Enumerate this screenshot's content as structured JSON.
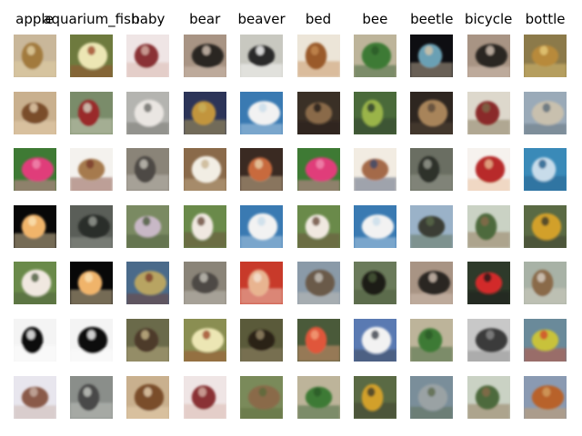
{
  "columns": [
    "apple",
    "aquarium_fish",
    "baby",
    "bear",
    "beaver",
    "bed",
    "bee",
    "beetle",
    "bicycle",
    "bottle"
  ],
  "rows": [
    [
      {
        "subject": "bottle",
        "bg": "#c9b79a",
        "fg": "#a27a3e",
        "accent": "#e4d2a4"
      },
      {
        "subject": "lily flower",
        "bg": "#6e7a3e",
        "fg": "#ece6b4",
        "accent": "#a04a2a"
      },
      {
        "subject": "couch",
        "bg": "#efe5e5",
        "fg": "#8a3034",
        "accent": "#d6b2a6"
      },
      {
        "subject": "dark shape",
        "bg": "#a89484",
        "fg": "#2a2622",
        "accent": "#d7c6b8"
      },
      {
        "subject": "bird",
        "bg": "#c8c8c0",
        "fg": "#2c2c2a",
        "accent": "#ffffff"
      },
      {
        "subject": "chair",
        "bg": "#ece5d8",
        "fg": "#9a5a2a",
        "accent": "#c48a52"
      },
      {
        "subject": "bottles",
        "bg": "#bdb49a",
        "fg": "#3e7a34",
        "accent": "#2c5a2a"
      },
      {
        "subject": "dinosaur",
        "bg": "#0e0e12",
        "fg": "#6aa0b4",
        "accent": "#d6c6a8"
      },
      {
        "subject": "dark shape",
        "bg": "#a89484",
        "fg": "#2a2622",
        "accent": "#d7c6b8"
      },
      {
        "subject": "pear",
        "bg": "#8c7a4a",
        "fg": "#b88a3a",
        "accent": "#e6ca7a"
      }
    ],
    [
      {
        "subject": "woman",
        "bg": "#c9b08e",
        "fg": "#7a4e2a",
        "accent": "#e8d2b2"
      },
      {
        "subject": "streetcar",
        "bg": "#7a8c6a",
        "fg": "#9a2a2a",
        "accent": "#d6d6c6"
      },
      {
        "subject": "white dog",
        "bg": "#b4b4b0",
        "fg": "#eae6e2",
        "accent": "#6a6a66"
      },
      {
        "subject": "pear",
        "bg": "#2c3458",
        "fg": "#c2953e",
        "accent": "#c8b05a"
      },
      {
        "subject": "rocket",
        "bg": "#3a7ab2",
        "fg": "#f2f2f2",
        "accent": "#c8dcea"
      },
      {
        "subject": "leopard",
        "bg": "#3a3026",
        "fg": "#8a6a48",
        "accent": "#1e1a16"
      },
      {
        "subject": "fish",
        "bg": "#4a6a3a",
        "fg": "#9ab44a",
        "accent": "#2a3a2a"
      },
      {
        "subject": "dark plant",
        "bg": "#2e2620",
        "fg": "#a8845a",
        "accent": "#5a4a3a"
      },
      {
        "subject": "bicycle",
        "bg": "#ddd8cc",
        "fg": "#8a2a2a",
        "accent": "#7a6a4a"
      },
      {
        "subject": "beach",
        "bg": "#9aaab8",
        "fg": "#c8c0ae",
        "accent": "#5a6a78"
      }
    ],
    [
      {
        "subject": "rose",
        "bg": "#3e7a34",
        "fg": "#e03e7a",
        "accent": "#f08ab0"
      },
      {
        "subject": "lamp",
        "bg": "#f4f2ee",
        "fg": "#a67a4e",
        "accent": "#7a3a2a"
      },
      {
        "subject": "raccoon",
        "bg": "#8a8478",
        "fg": "#4e4a44",
        "accent": "#c8c4bc"
      },
      {
        "subject": "couch",
        "bg": "#8a6a4a",
        "fg": "#f2eee4",
        "accent": "#c8b490"
      },
      {
        "subject": "bowl",
        "bg": "#3a2a22",
        "fg": "#c86a3e",
        "accent": "#e8d0a8"
      },
      {
        "subject": "rose",
        "bg": "#3e7a34",
        "fg": "#e03e7a",
        "accent": "#f08ab0"
      },
      {
        "subject": "bowl",
        "bg": "#f2ece2",
        "fg": "#a46a4a",
        "accent": "#3a4a6a"
      },
      {
        "subject": "dark animal",
        "bg": "#6a6e62",
        "fg": "#2e302c",
        "accent": "#9a9e92"
      },
      {
        "subject": "rose",
        "bg": "#f6f2ee",
        "fg": "#b82a2a",
        "accent": "#e8b890"
      },
      {
        "subject": "shark",
        "bg": "#3a8ab8",
        "fg": "#c8dcea",
        "accent": "#1e5a88"
      }
    ],
    [
      {
        "subject": "rose",
        "bg": "#080808",
        "fg": "#f0b46a",
        "accent": "#fae2b4"
      },
      {
        "subject": "forest",
        "bg": "#5a5e58",
        "fg": "#2c2e2a",
        "accent": "#9a9e96"
      },
      {
        "subject": "girl",
        "bg": "#7a8a62",
        "fg": "#c8b8c6",
        "accent": "#4a5a3a"
      },
      {
        "subject": "cattle",
        "bg": "#6a8a4a",
        "fg": "#f0e8e0",
        "accent": "#6a4a3a"
      },
      {
        "subject": "rocket",
        "bg": "#3a7ab2",
        "fg": "#f2f2f2",
        "accent": "#c8dcea"
      },
      {
        "subject": "cattle",
        "bg": "#6a8a4a",
        "fg": "#f0e8e0",
        "accent": "#6a4a3a"
      },
      {
        "subject": "rocket",
        "bg": "#3a7ab2",
        "fg": "#f2f2f2",
        "accent": "#c8dcea"
      },
      {
        "subject": "tank",
        "bg": "#9ab2c8",
        "fg": "#3a3e34",
        "accent": "#5a6a4a"
      },
      {
        "subject": "palm tree",
        "bg": "#cad2c4",
        "fg": "#4e6a3e",
        "accent": "#8a6a4a"
      },
      {
        "subject": "bulldozer",
        "bg": "#5a6a44",
        "fg": "#d2a02a",
        "accent": "#3a3a2a"
      }
    ],
    [
      {
        "subject": "cattle",
        "bg": "#6a8a4a",
        "fg": "#f0e8e0",
        "accent": "#4a5a3a"
      },
      {
        "subject": "rose",
        "bg": "#080808",
        "fg": "#f0b46a",
        "accent": "#fae2b4"
      },
      {
        "subject": "plate",
        "bg": "#4a6a8a",
        "fg": "#b8a462",
        "accent": "#7a3a2a"
      },
      {
        "subject": "raccoon",
        "bg": "#8a8478",
        "fg": "#4e4a44",
        "accent": "#c8c4bc"
      },
      {
        "subject": "girl",
        "bg": "#c83a2a",
        "fg": "#e8b490",
        "accent": "#f2e2d2"
      },
      {
        "subject": "street",
        "bg": "#8a9aa8",
        "fg": "#6a5a4a",
        "accent": "#c8c4bc"
      },
      {
        "subject": "bear",
        "bg": "#6a7a5a",
        "fg": "#1e1a16",
        "accent": "#4a5a3a"
      },
      {
        "subject": "dark shape",
        "bg": "#a89484",
        "fg": "#2a2622",
        "accent": "#d7c6b8"
      },
      {
        "subject": "ladybug",
        "bg": "#2e3a2a",
        "fg": "#d22a2a",
        "accent": "#1a1a1a"
      },
      {
        "subject": "pot",
        "bg": "#a8b2a6",
        "fg": "#8a6a4a",
        "accent": "#d8d0c4"
      }
    ],
    [
      {
        "subject": "skunk",
        "bg": "#f4f4f4",
        "fg": "#0e0e0e",
        "accent": "#ffffff"
      },
      {
        "subject": "skunk",
        "bg": "#f4f4f4",
        "fg": "#0e0e0e",
        "accent": "#ffffff"
      },
      {
        "subject": "monkey",
        "bg": "#6a6a4a",
        "fg": "#4e3a2a",
        "accent": "#c8b88a"
      },
      {
        "subject": "lily flower",
        "bg": "#8a8e52",
        "fg": "#ece6b4",
        "accent": "#a04a2a"
      },
      {
        "subject": "chimp",
        "bg": "#5a5a3a",
        "fg": "#2a2218",
        "accent": "#9a8a6a"
      },
      {
        "subject": "flower",
        "bg": "#4a5a3a",
        "fg": "#e0563a",
        "accent": "#f2a07a"
      },
      {
        "subject": "mountain",
        "bg": "#5a7ab2",
        "fg": "#f2f2f2",
        "accent": "#3a3e4a"
      },
      {
        "subject": "bottles",
        "bg": "#bdb49a",
        "fg": "#3e7a34",
        "accent": "#2c5a2a"
      },
      {
        "subject": "keyboard",
        "bg": "#c8c8c8",
        "fg": "#3a3a3a",
        "accent": "#8a8a8a"
      },
      {
        "subject": "pear",
        "bg": "#6a8a9a",
        "fg": "#c8c23a",
        "accent": "#d24a2a"
      }
    ],
    [
      {
        "subject": "worm",
        "bg": "#e8e6ee",
        "fg": "#8a5a4a",
        "accent": "#c8b0a4"
      },
      {
        "subject": "shark",
        "bg": "#8a8e8a",
        "fg": "#4a4a48",
        "accent": "#c8cac6"
      },
      {
        "subject": "woman",
        "bg": "#c9b08e",
        "fg": "#7a4e2a",
        "accent": "#e8d2b2"
      },
      {
        "subject": "couch",
        "bg": "#efe5e5",
        "fg": "#8a3034",
        "accent": "#d6b2a6"
      },
      {
        "subject": "ground",
        "bg": "#7a8a5a",
        "fg": "#8a6a4a",
        "accent": "#5a6a3a"
      },
      {
        "subject": "bottles",
        "bg": "#bdb49a",
        "fg": "#3e7a34",
        "accent": "#2c5a2a"
      },
      {
        "subject": "bulldozer",
        "bg": "#5a6a44",
        "fg": "#d2a02a",
        "accent": "#3a3a2a"
      },
      {
        "subject": "kangaroo",
        "bg": "#7a8e9a",
        "fg": "#9aa2a4",
        "accent": "#5a6a4a"
      },
      {
        "subject": "palm tree",
        "bg": "#cad2c4",
        "fg": "#4e6a3e",
        "accent": "#8a6a4a"
      },
      {
        "subject": "tree",
        "bg": "#8a9ab2",
        "fg": "#b8622a",
        "accent": "#d2a060"
      }
    ]
  ]
}
